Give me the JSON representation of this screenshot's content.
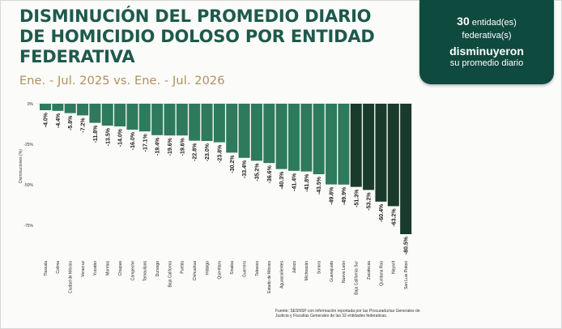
{
  "title": "DISMINUCIÓN DEL PROMEDIO DIARIO DE HOMICIDIO DOLOSO POR ENTIDAD FEDERATIVA",
  "subtitle": "Ene. - Jul. 2025 vs. Ene. - Jul. 2026",
  "badge": {
    "count": "30",
    "count_suffix": " entidad(es)",
    "line2": "federativa(s)",
    "line3": "disminuyeron",
    "line4": "su promedio diario"
  },
  "source": "Fuente: SESNSP con información reportada por las Procuradurías Generales de Justicia y Fiscalías Generales de las 32 entidades federativas.",
  "colors": {
    "title": "#1d5a4c",
    "subtitle": "#b08e5a",
    "badge": "#0f4a3f",
    "bar_light": "#2e7a5c",
    "bar_dark": "#1a3a2c"
  },
  "chart_data": {
    "type": "bar",
    "ylabel": "Disminuciones (%)",
    "ylim": [
      -85,
      0
    ],
    "yticks": [
      0,
      -25,
      -50,
      -75
    ],
    "ytick_labels": [
      "0%",
      "-25%",
      "-50%",
      "-75%"
    ],
    "grid": false,
    "categories": [
      "Tlaxcala",
      "Colima",
      "Ciudad de México",
      "Veracruz",
      "Yucatán",
      "Morelos",
      "Chiapas",
      "Campeche",
      "Tamaulipas",
      "Durango",
      "Baja California",
      "Puebla",
      "Chihuahua",
      "Hidalgo",
      "Querétaro",
      "Sinaloa",
      "Guerrero",
      "Tabasco",
      "Estado de México",
      "Aguascalientes",
      "Jalisco",
      "Michoacán",
      "Sonora",
      "Guanajuato",
      "Nuevo León",
      "Baja California Sur",
      "Zacatecas",
      "Quintana Roo",
      "Nayarit",
      "San Luis Potosí"
    ],
    "values": [
      -4.0,
      -4.4,
      -5.8,
      -7.2,
      -11.8,
      -13.5,
      -14.0,
      -16.0,
      -17.1,
      -19.4,
      -19.6,
      -19.6,
      -22.8,
      -23.0,
      -23.8,
      -30.2,
      -33.4,
      -35.2,
      -36.6,
      -40.3,
      -41.4,
      -41.8,
      -43.5,
      -49.8,
      -49.9,
      -51.3,
      -53.2,
      -60.4,
      -63.2,
      -80.5
    ],
    "data_labels": [
      "-4.0%",
      "-4.4%",
      "-5.8%",
      "-7.2%",
      "-11.8%",
      "-13.5%",
      "-14.0%",
      "-16.0%",
      "-17.1%",
      "-19.4%",
      "-19.6%",
      "-19.6%",
      "-22.8%",
      "-23.0%",
      "-23.8%",
      "-30.2%",
      "-33.4%",
      "-35.2%",
      "-36.6%",
      "-40.3%",
      "-41.4%",
      "-41.8%",
      "-43.5%",
      "-49.8%",
      "-49.9%",
      "-51.3%",
      "-53.2%",
      "-60.4%",
      "-63.2%",
      "-80.5%"
    ],
    "dark_from_index": 25
  }
}
